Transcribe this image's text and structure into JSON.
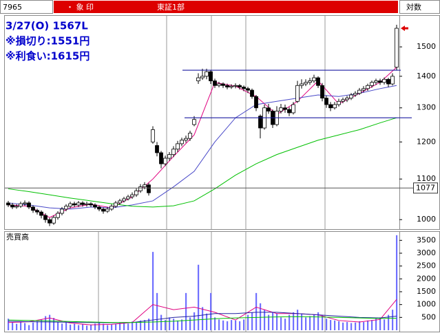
{
  "header": {
    "code": "7965",
    "name": "・ 象 印",
    "market": "東証1部",
    "scale_mode": "対数"
  },
  "chart_data": [
    {
      "type": "candlestick",
      "annotations": [
        "3/27(O) 1567L",
        "※損切り:1551円",
        "※利食い:1615円"
      ],
      "log": true,
      "ylim": [
        978,
        1616
      ],
      "yticks": [
        1000,
        1100,
        1200,
        1300,
        1400,
        1500
      ],
      "open": [
        1040,
        1035,
        1030,
        1032,
        1038,
        1040,
        1030,
        1022,
        1018,
        1010,
        1000,
        992,
        1005,
        1015,
        1025,
        1032,
        1038,
        1035,
        1040,
        1036,
        1038,
        1035,
        1030,
        1025,
        1020,
        1025,
        1032,
        1040,
        1045,
        1050,
        1055,
        1060,
        1070,
        1080,
        1085,
        1200,
        1190,
        1170,
        1140,
        1155,
        1165,
        1180,
        1195,
        1205,
        1210,
        1250,
        1385,
        1395,
        1400,
        1415,
        1385,
        1370,
        1375,
        1370,
        1365,
        1368,
        1370,
        1365,
        1360,
        1355,
        1335,
        1275,
        1240,
        1300,
        1290,
        1250,
        1290,
        1300,
        1295,
        1285,
        1320,
        1370,
        1375,
        1380,
        1385,
        1395,
        1370,
        1330,
        1310,
        1300,
        1310,
        1320,
        1325,
        1330,
        1340,
        1345,
        1355,
        1360,
        1370,
        1380,
        1385,
        1380,
        1390,
        1375,
        1430
      ],
      "high": [
        1045,
        1040,
        1037,
        1043,
        1046,
        1044,
        1034,
        1026,
        1022,
        1015,
        1004,
        1010,
        1020,
        1030,
        1037,
        1043,
        1043,
        1045,
        1044,
        1043,
        1042,
        1039,
        1034,
        1029,
        1030,
        1037,
        1045,
        1050,
        1055,
        1060,
        1066,
        1076,
        1087,
        1092,
        1090,
        1245,
        1200,
        1175,
        1162,
        1172,
        1188,
        1203,
        1212,
        1218,
        1232,
        1275,
        1410,
        1425,
        1425,
        1420,
        1392,
        1382,
        1380,
        1376,
        1374,
        1377,
        1375,
        1370,
        1366,
        1360,
        1340,
        1280,
        1310,
        1312,
        1295,
        1305,
        1312,
        1310,
        1302,
        1318,
        1385,
        1390,
        1390,
        1395,
        1405,
        1400,
        1378,
        1338,
        1318,
        1318,
        1328,
        1332,
        1337,
        1346,
        1352,
        1362,
        1368,
        1376,
        1386,
        1392,
        1392,
        1396,
        1395,
        1410,
        1580
      ],
      "low": [
        1030,
        1025,
        1026,
        1028,
        1033,
        1025,
        1016,
        1012,
        1003,
        993,
        985,
        988,
        1000,
        1010,
        1020,
        1027,
        1030,
        1030,
        1031,
        1031,
        1030,
        1025,
        1020,
        1014,
        1016,
        1021,
        1028,
        1036,
        1041,
        1046,
        1050,
        1055,
        1065,
        1074,
        1058,
        1195,
        1160,
        1128,
        1134,
        1148,
        1158,
        1172,
        1188,
        1198,
        1203,
        1245,
        1375,
        1388,
        1390,
        1375,
        1362,
        1364,
        1362,
        1358,
        1359,
        1361,
        1357,
        1352,
        1346,
        1328,
        1290,
        1210,
        1235,
        1282,
        1240,
        1245,
        1283,
        1285,
        1275,
        1280,
        1315,
        1360,
        1368,
        1372,
        1378,
        1362,
        1320,
        1300,
        1290,
        1295,
        1304,
        1314,
        1318,
        1324,
        1334,
        1340,
        1348,
        1353,
        1363,
        1372,
        1372,
        1373,
        1365,
        1370,
        1420
      ],
      "close": [
        1035,
        1030,
        1032,
        1038,
        1040,
        1030,
        1022,
        1018,
        1010,
        1000,
        992,
        1005,
        1015,
        1025,
        1032,
        1038,
        1035,
        1040,
        1036,
        1038,
        1035,
        1030,
        1025,
        1020,
        1025,
        1032,
        1040,
        1045,
        1050,
        1055,
        1060,
        1070,
        1080,
        1085,
        1065,
        1235,
        1170,
        1140,
        1155,
        1165,
        1180,
        1195,
        1205,
        1210,
        1225,
        1265,
        1395,
        1400,
        1415,
        1385,
        1370,
        1375,
        1370,
        1365,
        1368,
        1370,
        1365,
        1360,
        1355,
        1335,
        1300,
        1240,
        1300,
        1290,
        1250,
        1290,
        1300,
        1295,
        1285,
        1310,
        1370,
        1375,
        1380,
        1385,
        1395,
        1370,
        1330,
        1310,
        1300,
        1310,
        1320,
        1325,
        1330,
        1340,
        1345,
        1355,
        1360,
        1370,
        1380,
        1385,
        1380,
        1390,
        1375,
        1400,
        1567
      ],
      "up_color": "#ffffff",
      "down_color": "#000000",
      "line_x": [
        0,
        5,
        10,
        15,
        20,
        25,
        30,
        35,
        40,
        45,
        50,
        55,
        60,
        65,
        70,
        75,
        80,
        85,
        90,
        94
      ],
      "lines": [
        {
          "color": "#e0007f",
          "values": [
            1035,
            1032,
            1005,
            1028,
            1037,
            1028,
            1055,
            1100,
            1160,
            1220,
            1380,
            1368,
            1335,
            1280,
            1320,
            1385,
            1312,
            1345,
            1380,
            1430
          ]
        },
        {
          "color": "#4848c8",
          "values": [
            1040,
            1035,
            1028,
            1025,
            1030,
            1028,
            1035,
            1045,
            1080,
            1120,
            1200,
            1270,
            1310,
            1320,
            1330,
            1340,
            1335,
            1345,
            1360,
            1370
          ]
        },
        {
          "color": "#00c000",
          "values": [
            1075,
            1068,
            1060,
            1052,
            1045,
            1038,
            1032,
            1030,
            1033,
            1045,
            1075,
            1110,
            1140,
            1165,
            1185,
            1205,
            1220,
            1235,
            1255,
            1270
          ]
        }
      ],
      "hlines": [
        1420,
        1270
      ],
      "hline_color": "#1a1aa0",
      "price_marker": 1077
    },
    {
      "type": "bar",
      "title": "売買高",
      "color": "#7070ff",
      "ylim": [
        0,
        3830
      ],
      "yticks": [
        500,
        1000,
        1500,
        2000,
        2500,
        3000,
        3500
      ],
      "values": [
        450,
        300,
        250,
        350,
        280,
        200,
        300,
        350,
        420,
        550,
        600,
        480,
        320,
        260,
        300,
        220,
        250,
        200,
        230,
        180,
        210,
        260,
        300,
        250,
        200,
        220,
        250,
        280,
        300,
        260,
        340,
        300,
        380,
        400,
        450,
        3050,
        1450,
        600,
        400,
        500,
        450,
        380,
        420,
        1450,
        500,
        700,
        2550,
        900,
        650,
        1450,
        500,
        420,
        380,
        350,
        400,
        380,
        350,
        420,
        600,
        700,
        1450,
        1050,
        800,
        600,
        700,
        650,
        500,
        450,
        600,
        700,
        800,
        650,
        500,
        550,
        600,
        700,
        600,
        450,
        400,
        380,
        350,
        300,
        320,
        280,
        300,
        350,
        320,
        380,
        400,
        450,
        500,
        420,
        600,
        800,
        3700
      ],
      "line_x": [
        0,
        5,
        10,
        15,
        20,
        25,
        30,
        35,
        40,
        45,
        50,
        55,
        60,
        65,
        70,
        75,
        80,
        85,
        90,
        94
      ],
      "lines": [
        {
          "color": "#e0007f",
          "values": [
            300,
            330,
            480,
            280,
            210,
            230,
            300,
            1000,
            800,
            900,
            700,
            400,
            900,
            650,
            650,
            600,
            380,
            320,
            420,
            1200
          ]
        },
        {
          "color": "#2020a0",
          "values": [
            350,
            330,
            320,
            310,
            300,
            290,
            300,
            400,
            500,
            550,
            650,
            650,
            700,
            700,
            650,
            600,
            550,
            500,
            480,
            550
          ]
        },
        {
          "color": "#00c000",
          "values": [
            400,
            380,
            360,
            340,
            320,
            300,
            300,
            320,
            350,
            400,
            450,
            480,
            500,
            520,
            530,
            520,
            500,
            480,
            460,
            470
          ]
        }
      ]
    }
  ]
}
